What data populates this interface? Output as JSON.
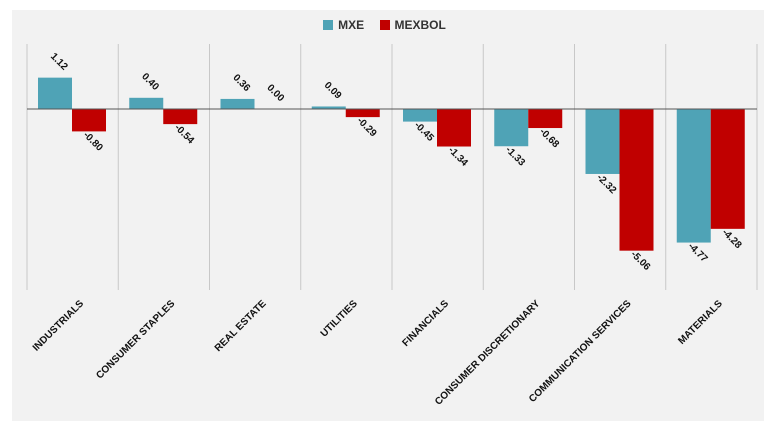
{
  "chart_data": {
    "type": "bar",
    "categories": [
      "INDUSTRIALS",
      "CONSUMER STAPLES",
      "REAL ESTATE",
      "UTILITIES",
      "FINANCIALS",
      "CONSUMER DISCRETIONARY",
      "COMMUNICATION SERVICES",
      "MATERIALS"
    ],
    "series": [
      {
        "name": "MXE",
        "color": "#4fa3b6",
        "values": [
          1.12,
          0.4,
          0.36,
          0.09,
          -0.45,
          -1.33,
          -2.32,
          -4.77
        ]
      },
      {
        "name": "MEXBOL",
        "color": "#c00000",
        "values": [
          -0.8,
          -0.54,
          0.0,
          -0.29,
          -1.34,
          -0.68,
          -5.06,
          -4.28
        ]
      }
    ],
    "value_labels": [
      [
        "1.12",
        "0.40",
        "0.36",
        "0.09",
        "-0.45",
        "-1.33",
        "-2.32",
        "-4.77"
      ],
      [
        "-0.80",
        "-0.54",
        "0.00",
        "-0.29",
        "-1.34",
        "-0.68",
        "-5.06",
        "-4.28"
      ]
    ],
    "ylim": [
      -6.0,
      2.3
    ],
    "grid": false,
    "legend": "top-center"
  }
}
